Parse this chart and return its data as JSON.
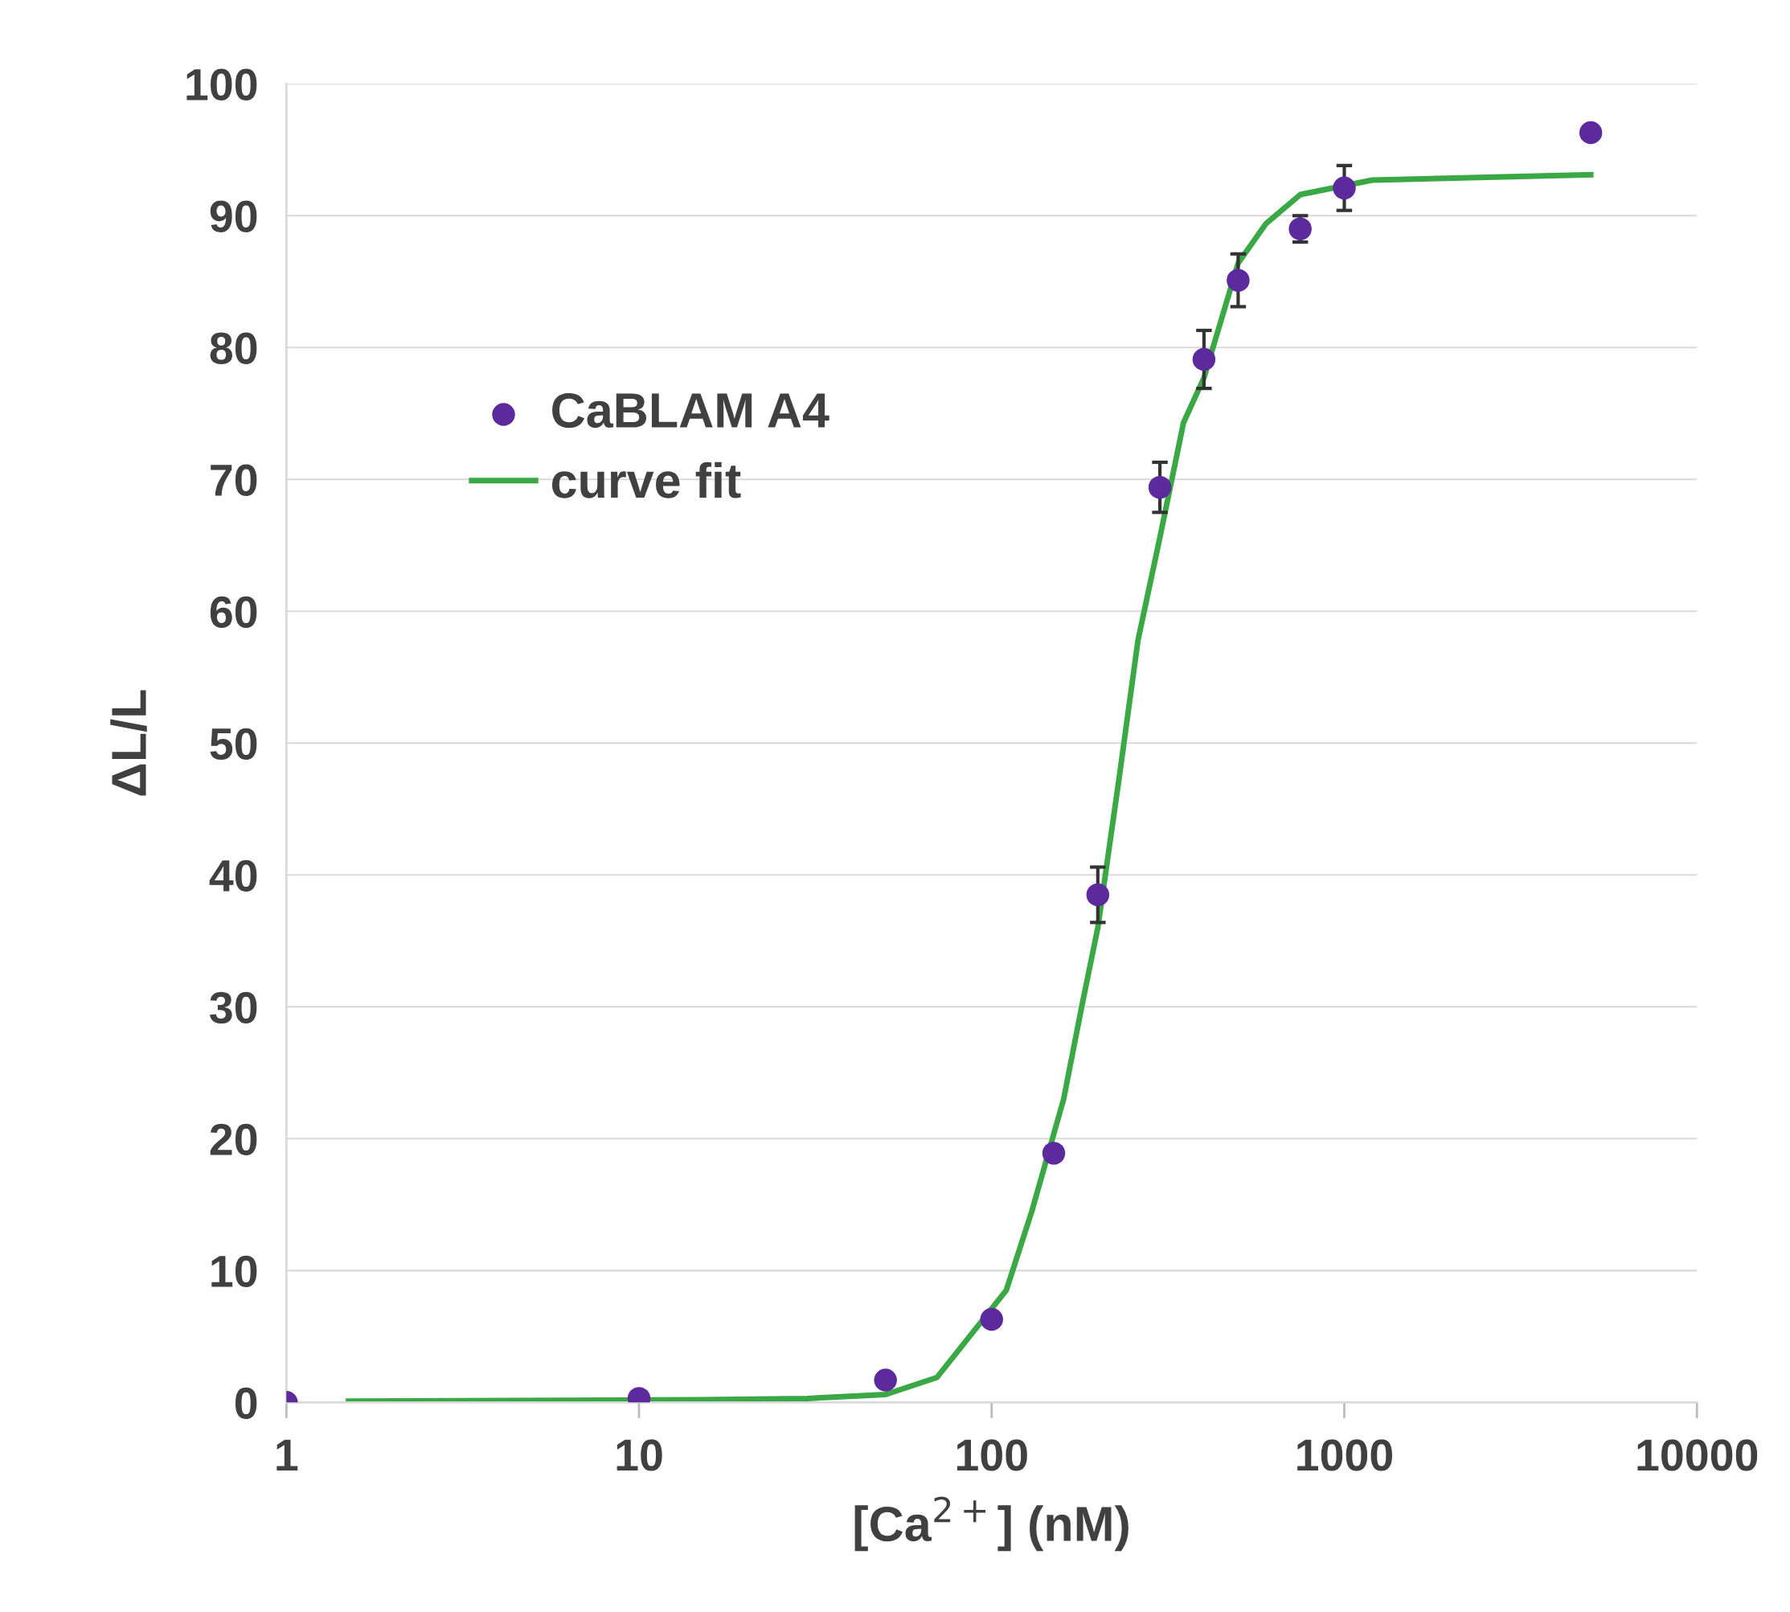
{
  "chart_data": {
    "type": "scatter",
    "xlabel": "[Ca$^{2+}$] (nM)",
    "ylabel": "ΔL/L",
    "log": "x",
    "xlim": [
      1,
      10000
    ],
    "xticks": [
      1,
      10,
      100,
      1000,
      10000
    ],
    "ylim": [
      0,
      100
    ],
    "yticks": [
      0,
      10,
      20,
      30,
      40,
      50,
      60,
      70,
      80,
      90,
      100
    ],
    "grid": "y",
    "legend": "top left",
    "series": [
      {
        "name": "CaBLAM A4",
        "color": "#5c2a9d",
        "marker": "circle",
        "x": [
          1,
          10,
          50,
          100,
          150,
          200,
          300,
          400,
          500,
          750,
          1000,
          5000
        ],
        "values": [
          0,
          0.3,
          1.7,
          6.3,
          18.9,
          38.5,
          69.4,
          79.1,
          85.1,
          89.0,
          92.1,
          96.3
        ],
        "errors": [
          null,
          null,
          null,
          null,
          null,
          2.1,
          1.9,
          2.2,
          2.0,
          1.0,
          1.7,
          null
        ]
      },
      {
        "name": "curve fit",
        "type": "line",
        "color": "#3aa845",
        "marker": "none",
        "line_style": "solid",
        "x": [
          1.5,
          15,
          30,
          50,
          70,
          110,
          130,
          160,
          180,
          200,
          230,
          260,
          300,
          350,
          400,
          500,
          600,
          750,
          1200,
          5000
        ],
        "values": [
          0.1,
          0.2,
          0.3,
          0.6,
          1.9,
          8.5,
          14.5,
          23,
          30,
          36,
          47.4,
          57.8,
          65.6,
          74.3,
          77.7,
          86.4,
          89.4,
          91.6,
          92.7,
          93.1
        ]
      }
    ]
  }
}
